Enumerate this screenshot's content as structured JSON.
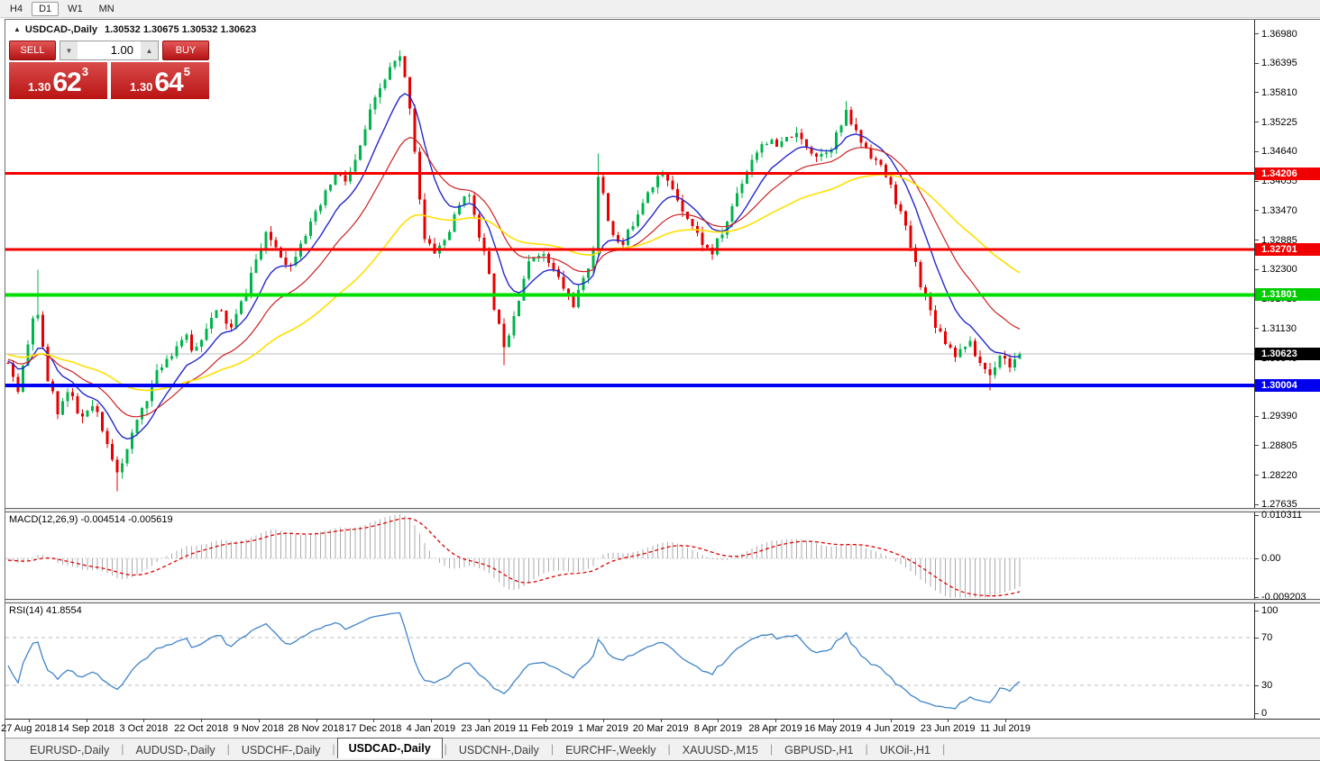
{
  "toolbar": {
    "timeframes": [
      {
        "label": "H4",
        "active": false
      },
      {
        "label": "D1",
        "active": true
      },
      {
        "label": "W1",
        "active": false
      },
      {
        "label": "MN",
        "active": false
      }
    ]
  },
  "icons": {
    "collapse": "▲",
    "volume_down": "▼",
    "volume_up": "▲"
  },
  "chart": {
    "title": "USDCAD-,Daily",
    "ohlc_text": "1.30532 1.30675 1.30532 1.30623"
  },
  "trade_panel": {
    "sell_label": "SELL",
    "buy_label": "BUY",
    "volume": "1.00",
    "sell_price": {
      "prefix": "1.30",
      "big": "62",
      "sup": "3"
    },
    "buy_price": {
      "prefix": "1.30",
      "big": "64",
      "sup": "5"
    }
  },
  "macd": {
    "label": "MACD(12,26,9)",
    "values_text": "-0.004514 -0.005619",
    "axis_ticks": [
      "0.010311",
      "0.00",
      "-0.009203"
    ]
  },
  "rsi": {
    "label": "RSI(14)",
    "value_text": "41.8554",
    "axis_ticks": [
      "100",
      "70",
      "30",
      "0"
    ]
  },
  "tabs": [
    {
      "label": "EURUSD-,Daily",
      "active": false
    },
    {
      "label": "AUDUSD-,Daily",
      "active": false
    },
    {
      "label": "USDCHF-,Daily",
      "active": false
    },
    {
      "label": "USDCAD-,Daily",
      "active": true
    },
    {
      "label": "USDCNH-,Daily",
      "active": false
    },
    {
      "label": "EURCHF-,Weekly",
      "active": false
    },
    {
      "label": "XAUUSD-,M15",
      "active": false
    },
    {
      "label": "GBPUSD-,H1",
      "active": false
    },
    {
      "label": "UKOil-,H1",
      "active": false
    }
  ],
  "chart_data": {
    "type": "candlestick",
    "symbol": "USDCAD-",
    "timeframe": "Daily",
    "ohlc_current": {
      "open": 1.30532,
      "high": 1.30675,
      "low": 1.30532,
      "close": 1.30623
    },
    "bars": 205,
    "y_axis": {
      "max": 1.3715,
      "min": 1.275,
      "ticks": [
        "1.36980",
        "1.36395",
        "1.35810",
        "1.35225",
        "1.34640",
        "1.34055",
        "1.33470",
        "1.32885",
        "1.32300",
        "1.31715",
        "1.31130",
        "1.30545",
        "1.29960",
        "1.29390",
        "1.28805",
        "1.28220",
        "1.27635"
      ]
    },
    "price_badges": [
      {
        "text": "1.34206",
        "price": 1.34206,
        "color": "#f00000"
      },
      {
        "text": "1.32701",
        "price": 1.32701,
        "color": "#f00000"
      },
      {
        "text": "1.31801",
        "price": 1.31801,
        "color": "#00cc00"
      },
      {
        "text": "1.30623",
        "price": 1.30623,
        "color": "#000000"
      },
      {
        "text": "1.30004",
        "price": 1.30004,
        "color": "#0000ee"
      }
    ],
    "horizontal_lines": [
      {
        "price": 1.34206,
        "color": "#f40000",
        "thickness": 3
      },
      {
        "price": 1.32701,
        "color": "#f40000",
        "thickness": 3
      },
      {
        "price": 1.31801,
        "color": "#00dd00",
        "thickness": 4
      },
      {
        "price": 1.30004,
        "color": "#0000f0",
        "thickness": 4
      }
    ],
    "current_price_line": {
      "price": 1.30623,
      "color": "#bbbbbb"
    },
    "candle_colors": {
      "bull": "#00b44c",
      "bear": "#e60000"
    },
    "moving_averages": [
      {
        "period": 10,
        "color": "#2328cc",
        "width": 1.4
      },
      {
        "period": 22,
        "color": "#cc2222",
        "width": 1.2
      },
      {
        "period": 55,
        "color": "#ffdf00",
        "width": 1.6
      }
    ],
    "close_path_anchors": [
      [
        0.0,
        1.3045
      ],
      [
        0.009,
        1.2985
      ],
      [
        0.018,
        1.306
      ],
      [
        0.027,
        1.3165
      ],
      [
        0.038,
        1.302
      ],
      [
        0.049,
        1.295
      ],
      [
        0.06,
        1.299
      ],
      [
        0.071,
        1.293
      ],
      [
        0.085,
        1.296
      ],
      [
        0.095,
        1.2895
      ],
      [
        0.108,
        1.2835
      ],
      [
        0.118,
        1.287
      ],
      [
        0.129,
        1.294
      ],
      [
        0.14,
        1.299
      ],
      [
        0.151,
        1.304
      ],
      [
        0.163,
        1.307
      ],
      [
        0.174,
        1.31
      ],
      [
        0.184,
        1.3065
      ],
      [
        0.196,
        1.312
      ],
      [
        0.209,
        1.315
      ],
      [
        0.22,
        1.311
      ],
      [
        0.232,
        1.317
      ],
      [
        0.243,
        1.324
      ],
      [
        0.256,
        1.33
      ],
      [
        0.267,
        1.327
      ],
      [
        0.279,
        1.3235
      ],
      [
        0.289,
        1.329
      ],
      [
        0.3,
        1.332
      ],
      [
        0.312,
        1.337
      ],
      [
        0.323,
        1.342
      ],
      [
        0.334,
        1.3405
      ],
      [
        0.345,
        1.345
      ],
      [
        0.356,
        1.353
      ],
      [
        0.368,
        1.359
      ],
      [
        0.378,
        1.363
      ],
      [
        0.387,
        1.365
      ],
      [
        0.396,
        1.3575
      ],
      [
        0.403,
        1.345
      ],
      [
        0.411,
        1.329
      ],
      [
        0.421,
        1.3265
      ],
      [
        0.432,
        1.329
      ],
      [
        0.443,
        1.334
      ],
      [
        0.452,
        1.339
      ],
      [
        0.462,
        1.3335
      ],
      [
        0.473,
        1.324
      ],
      [
        0.483,
        1.313
      ],
      [
        0.491,
        1.308
      ],
      [
        0.501,
        1.315
      ],
      [
        0.512,
        1.323
      ],
      [
        0.523,
        1.327
      ],
      [
        0.534,
        1.3245
      ],
      [
        0.546,
        1.3205
      ],
      [
        0.558,
        1.316
      ],
      [
        0.57,
        1.321
      ],
      [
        0.58,
        1.329
      ],
      [
        0.584,
        1.343
      ],
      [
        0.594,
        1.332
      ],
      [
        0.606,
        1.327
      ],
      [
        0.619,
        1.333
      ],
      [
        0.631,
        1.3385
      ],
      [
        0.644,
        1.342
      ],
      [
        0.656,
        1.3395
      ],
      [
        0.669,
        1.3345
      ],
      [
        0.681,
        1.33
      ],
      [
        0.695,
        1.326
      ],
      [
        0.708,
        1.331
      ],
      [
        0.721,
        1.3385
      ],
      [
        0.735,
        1.345
      ],
      [
        0.748,
        1.349
      ],
      [
        0.761,
        1.347
      ],
      [
        0.775,
        1.35
      ],
      [
        0.788,
        1.348
      ],
      [
        0.801,
        1.3455
      ],
      [
        0.815,
        1.348
      ],
      [
        0.829,
        1.354
      ],
      [
        0.841,
        1.349
      ],
      [
        0.855,
        1.3455
      ],
      [
        0.868,
        1.3415
      ],
      [
        0.881,
        1.335
      ],
      [
        0.893,
        1.327
      ],
      [
        0.904,
        1.319
      ],
      [
        0.915,
        1.313
      ],
      [
        0.926,
        1.309
      ],
      [
        0.938,
        1.306
      ],
      [
        0.948,
        1.309
      ],
      [
        0.959,
        1.305
      ],
      [
        0.971,
        1.302
      ],
      [
        0.98,
        1.3065
      ],
      [
        0.991,
        1.304
      ],
      [
        1.0,
        1.30623
      ]
    ],
    "spike_wicks": [
      {
        "f": 0.027,
        "high": 1.323
      },
      {
        "f": 0.108,
        "low": 1.279
      },
      {
        "f": 0.387,
        "high": 1.3665
      },
      {
        "f": 0.491,
        "low": 1.304
      },
      {
        "f": 0.584,
        "high": 1.346
      },
      {
        "f": 0.829,
        "high": 1.3565
      },
      {
        "f": 0.971,
        "low": 1.299
      }
    ],
    "macd_pane": {
      "params": [
        12,
        26,
        9
      ],
      "macd_value": -0.004514,
      "signal_value": -0.005619,
      "axis_max": 0.010311,
      "axis_min": -0.009203,
      "view_max": 0.01096,
      "view_min": -0.00967,
      "histogram_color": "#ababab",
      "signal_color": "#e00000"
    },
    "rsi_pane": {
      "period": 14,
      "value": 41.8554,
      "levels": [
        70,
        30
      ],
      "line_color": "#3f83c9",
      "level_color": "#bdbdbd"
    },
    "date_labels": [
      "27 Aug 2018",
      "14 Sep 2018",
      "3 Oct 2018",
      "22 Oct 2018",
      "9 Nov 2018",
      "28 Nov 2018",
      "17 Dec 2018",
      "4 Jan 2019",
      "23 Jan 2019",
      "11 Feb 2019",
      "1 Mar 2019",
      "20 Mar 2019",
      "8 Apr 2019",
      "28 Apr 2019",
      "16 May 2019",
      "4 Jun 2019",
      "23 Jun 2019",
      "11 Jul 2019"
    ]
  }
}
